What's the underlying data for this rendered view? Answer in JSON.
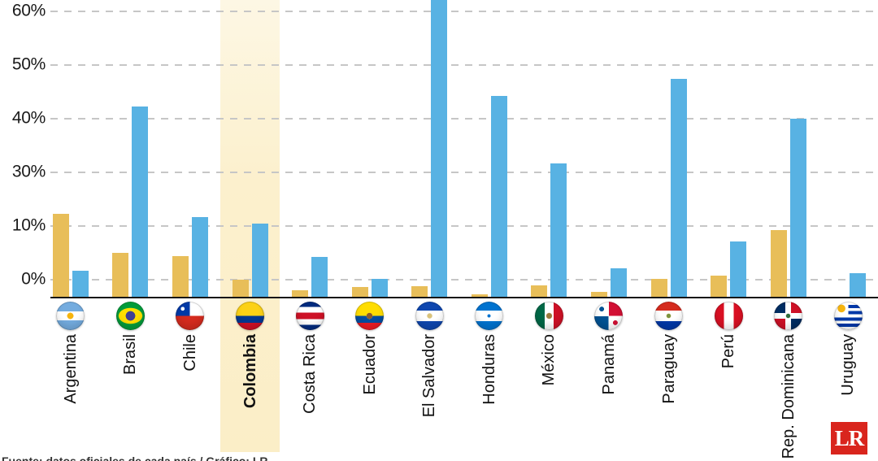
{
  "chart_data": {
    "type": "bar",
    "title": "",
    "categories": [
      "Argentina",
      "Brasil",
      "Chile",
      "Colombia",
      "Costa Rica",
      "Ecuador",
      "El Salvador",
      "Honduras",
      "México",
      "Panamá",
      "Paraguay",
      "Perú",
      "Rep. Dominicana",
      "Uruguay"
    ],
    "flags": [
      "argentina",
      "brasil",
      "chile",
      "colombia",
      "costarica",
      "ecuador",
      "elsalvador",
      "honduras",
      "mexico",
      "panama",
      "paraguay",
      "peru",
      "repdominicana",
      "uruguay"
    ],
    "highlighted_category": "Colombia",
    "highlight_color": "#FBEEC9",
    "series": [
      {
        "name": "serie-amarilla",
        "color": "#E8BE59",
        "values": [
          14.5,
          6.3,
          5.8,
          2.5,
          1.0,
          1.5,
          1.6,
          0.4,
          1.7,
          0.8,
          2.6,
          3.1,
          9.4,
          0
        ]
      },
      {
        "name": "serie-azul",
        "color": "#58B2E3",
        "values": [
          3.8,
          42.3,
          13.3,
          11.0,
          5.7,
          2.6,
          63.0,
          44.2,
          31.7,
          4.1,
          47.4,
          7.8,
          40.0,
          3.4
        ]
      }
    ],
    "yaxis": {
      "tick_labels": [
        "60%",
        "50%",
        "40%",
        "30%",
        "10%",
        "0%"
      ],
      "tick_values": [
        60,
        50,
        40,
        30,
        10,
        0
      ]
    },
    "grid": "dashed-horizontal",
    "legend_position": "none"
  },
  "footer": {
    "source_clipped": "Fuente: datos oficiales de cada país / Gráfico: LR",
    "logo_text": "LR",
    "logo_color": "#D9251D"
  }
}
